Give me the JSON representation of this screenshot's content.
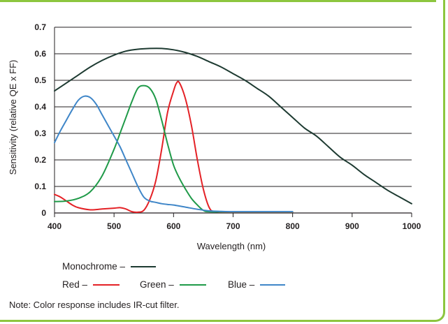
{
  "chart_data": {
    "type": "line",
    "xlabel": "Wavelength (nm)",
    "ylabel": "Sensitivity (relative QE x FF)",
    "xlim": [
      400,
      1000
    ],
    "ylim": [
      0,
      0.7
    ],
    "x_ticks": [
      "400",
      "500",
      "600",
      "700",
      "800",
      "900",
      "1000"
    ],
    "y_ticks": [
      "0",
      "0.1",
      "0.2",
      "0.3",
      "0.4",
      "0.5",
      "0.6",
      "0.7"
    ],
    "grid": "horizontal",
    "series": [
      {
        "name": "Monochrome",
        "color": "#1d3a31",
        "points": [
          [
            400,
            0.46
          ],
          [
            420,
            0.49
          ],
          [
            440,
            0.52
          ],
          [
            460,
            0.55
          ],
          [
            480,
            0.575
          ],
          [
            500,
            0.595
          ],
          [
            520,
            0.61
          ],
          [
            540,
            0.617
          ],
          [
            560,
            0.62
          ],
          [
            580,
            0.62
          ],
          [
            600,
            0.615
          ],
          [
            620,
            0.605
          ],
          [
            640,
            0.59
          ],
          [
            660,
            0.57
          ],
          [
            680,
            0.55
          ],
          [
            700,
            0.525
          ],
          [
            720,
            0.5
          ],
          [
            740,
            0.47
          ],
          [
            760,
            0.44
          ],
          [
            780,
            0.4
          ],
          [
            800,
            0.36
          ],
          [
            820,
            0.32
          ],
          [
            840,
            0.29
          ],
          [
            860,
            0.25
          ],
          [
            880,
            0.21
          ],
          [
            900,
            0.18
          ],
          [
            920,
            0.145
          ],
          [
            940,
            0.115
          ],
          [
            960,
            0.085
          ],
          [
            980,
            0.06
          ],
          [
            1000,
            0.035
          ]
        ]
      },
      {
        "name": "Red",
        "color": "#e42126",
        "points": [
          [
            400,
            0.07
          ],
          [
            410,
            0.06
          ],
          [
            420,
            0.045
          ],
          [
            430,
            0.03
          ],
          [
            440,
            0.02
          ],
          [
            460,
            0.012
          ],
          [
            480,
            0.015
          ],
          [
            500,
            0.018
          ],
          [
            510,
            0.02
          ],
          [
            520,
            0.015
          ],
          [
            530,
            0.005
          ],
          [
            540,
            0.003
          ],
          [
            550,
            0.01
          ],
          [
            560,
            0.05
          ],
          [
            570,
            0.12
          ],
          [
            580,
            0.24
          ],
          [
            590,
            0.38
          ],
          [
            600,
            0.46
          ],
          [
            605,
            0.49
          ],
          [
            610,
            0.49
          ],
          [
            620,
            0.43
          ],
          [
            630,
            0.33
          ],
          [
            640,
            0.2
          ],
          [
            650,
            0.09
          ],
          [
            660,
            0.02
          ],
          [
            670,
            0.005
          ],
          [
            700,
            0.003
          ],
          [
            750,
            0.003
          ],
          [
            800,
            0.003
          ]
        ]
      },
      {
        "name": "Green",
        "color": "#1f9a48",
        "points": [
          [
            400,
            0.043
          ],
          [
            420,
            0.045
          ],
          [
            440,
            0.055
          ],
          [
            460,
            0.08
          ],
          [
            480,
            0.14
          ],
          [
            500,
            0.24
          ],
          [
            510,
            0.3
          ],
          [
            520,
            0.36
          ],
          [
            530,
            0.42
          ],
          [
            540,
            0.47
          ],
          [
            550,
            0.48
          ],
          [
            560,
            0.47
          ],
          [
            570,
            0.43
          ],
          [
            580,
            0.35
          ],
          [
            590,
            0.26
          ],
          [
            600,
            0.18
          ],
          [
            610,
            0.13
          ],
          [
            620,
            0.09
          ],
          [
            630,
            0.055
          ],
          [
            640,
            0.03
          ],
          [
            650,
            0.01
          ],
          [
            660,
            0.005
          ],
          [
            700,
            0.004
          ],
          [
            750,
            0.004
          ],
          [
            800,
            0.004
          ]
        ]
      },
      {
        "name": "Blue",
        "color": "#3f86c8",
        "points": [
          [
            400,
            0.265
          ],
          [
            410,
            0.31
          ],
          [
            420,
            0.35
          ],
          [
            430,
            0.39
          ],
          [
            440,
            0.425
          ],
          [
            450,
            0.44
          ],
          [
            460,
            0.435
          ],
          [
            470,
            0.41
          ],
          [
            480,
            0.37
          ],
          [
            490,
            0.33
          ],
          [
            500,
            0.29
          ],
          [
            510,
            0.25
          ],
          [
            520,
            0.2
          ],
          [
            530,
            0.15
          ],
          [
            540,
            0.1
          ],
          [
            550,
            0.06
          ],
          [
            560,
            0.045
          ],
          [
            570,
            0.04
          ],
          [
            580,
            0.035
          ],
          [
            590,
            0.032
          ],
          [
            600,
            0.03
          ],
          [
            620,
            0.022
          ],
          [
            640,
            0.014
          ],
          [
            660,
            0.008
          ],
          [
            680,
            0.006
          ],
          [
            700,
            0.005
          ],
          [
            750,
            0.005
          ],
          [
            800,
            0.005
          ]
        ]
      }
    ]
  },
  "legend": {
    "monochrome_label": "Monochrome –",
    "red_label": "Red –",
    "green_label": "Green –",
    "blue_label": "Blue –"
  },
  "note": "Note: Color response includes IR-cut filter."
}
